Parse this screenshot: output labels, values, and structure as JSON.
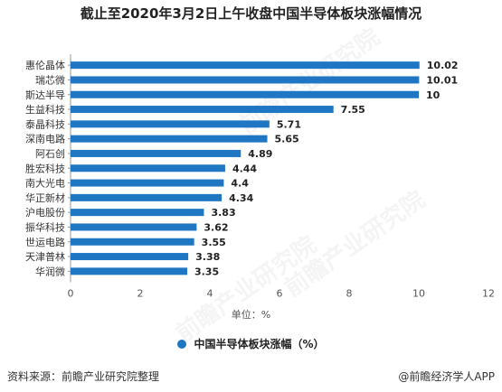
{
  "chart_data": {
    "type": "bar",
    "orientation": "horizontal",
    "title": "截止至2020年3月2日上午收盘中国半导体板块涨幅情况",
    "categories": [
      "惠伦晶体",
      "瑞芯微",
      "斯达半导",
      "生益科技",
      "泰晶科技",
      "深南电路",
      "阿石创",
      "胜宏科技",
      "南大光电",
      "华正新材",
      "沪电股份",
      "振华科技",
      "世运电路",
      "天津普林",
      "华润微"
    ],
    "series": [
      {
        "name": "中国半导体板块涨幅（%）",
        "values": [
          10.02,
          10.01,
          10,
          7.55,
          5.71,
          5.65,
          4.89,
          4.44,
          4.4,
          4.34,
          3.83,
          3.62,
          3.55,
          3.38,
          3.35
        ],
        "labels": [
          "10.02",
          "10.01",
          "10",
          "7.55",
          "5.71",
          "5.65",
          "4.89",
          "4.44",
          "4.4",
          "4.34",
          "3.83",
          "3.62",
          "3.55",
          "3.38",
          "3.35"
        ]
      }
    ],
    "xlim": [
      0,
      12
    ],
    "xticks": [
      "0",
      "2",
      "4",
      "6",
      "8",
      "10",
      "12"
    ],
    "xlabel": "单位：%",
    "grid": false,
    "legend_position": "bottom",
    "bar_color": "#1f77c4"
  },
  "footer": {
    "source": "资料来源：前瞻产业研究院整理",
    "brand": "@前瞻经济学人APP"
  },
  "watermark": "前瞻产业研究院"
}
